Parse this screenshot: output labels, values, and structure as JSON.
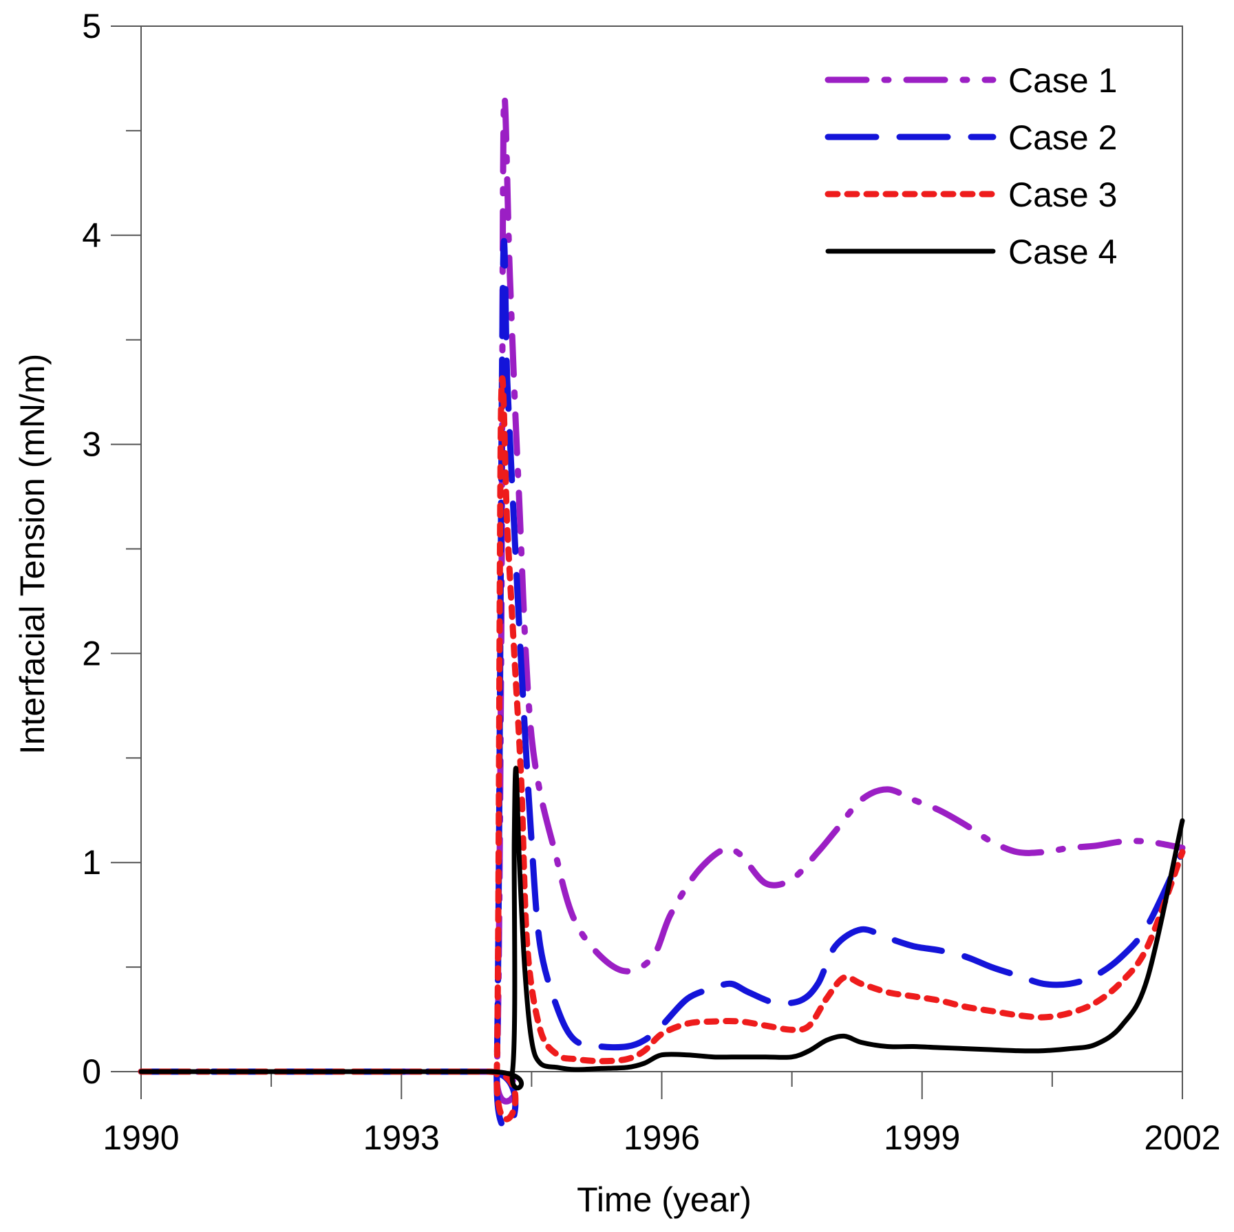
{
  "chart_data": {
    "type": "line",
    "title": "",
    "xlabel": "Time (year)",
    "ylabel": "Interfacial Tension (mN/m)",
    "xlim": [
      1990,
      2002
    ],
    "ylim": [
      0,
      5
    ],
    "xticks": [
      1990,
      1993,
      1996,
      1999,
      2002
    ],
    "xtick_labels": [
      "1990",
      "1993",
      "1996",
      "1999",
      "2002"
    ],
    "yticks": [
      0,
      1,
      2,
      3,
      4,
      5
    ],
    "ytick_labels": [
      "0",
      "1",
      "2",
      "3",
      "4",
      "5"
    ],
    "grid": false,
    "legend_position": "top-right",
    "series": [
      {
        "name": "Case 1",
        "color": "#9b1fc4",
        "style": "dash-dot",
        "x": [
          1990,
          1994.0,
          1994.1,
          1994.15,
          1994.18,
          1994.25,
          1994.35,
          1994.5,
          1994.8,
          1995.0,
          1995.3,
          1995.6,
          1995.9,
          1996.1,
          1996.4,
          1996.7,
          1996.9,
          1997.2,
          1997.5,
          1997.8,
          1998.0,
          1998.3,
          1998.6,
          1998.9,
          1999.2,
          1999.5,
          1999.8,
          2000.1,
          2000.4,
          2000.7,
          2001.0,
          2001.3,
          2001.6,
          2002.0
        ],
        "y": [
          0,
          0,
          0,
          2.0,
          4.6,
          3.8,
          2.8,
          1.6,
          1.0,
          0.72,
          0.55,
          0.48,
          0.55,
          0.75,
          0.95,
          1.06,
          1.04,
          0.9,
          0.92,
          1.05,
          1.15,
          1.3,
          1.35,
          1.3,
          1.25,
          1.18,
          1.1,
          1.05,
          1.05,
          1.07,
          1.08,
          1.1,
          1.1,
          1.07
        ]
      },
      {
        "name": "Case 2",
        "color": "#1414d9",
        "style": "long-dash",
        "x": [
          1990,
          1994.0,
          1994.1,
          1994.17,
          1994.22,
          1994.3,
          1994.4,
          1994.5,
          1994.6,
          1994.8,
          1995.0,
          1995.3,
          1995.6,
          1995.8,
          1996.0,
          1996.3,
          1996.6,
          1996.8,
          1997.0,
          1997.3,
          1997.6,
          1997.8,
          1998.0,
          1998.3,
          1998.6,
          1998.9,
          1999.2,
          1999.5,
          1999.8,
          2000.1,
          2000.4,
          2000.7,
          2001.0,
          2001.3,
          2001.6,
          2002.0
        ],
        "y": [
          0,
          0,
          0,
          3.8,
          3.3,
          2.6,
          1.8,
          1.1,
          0.6,
          0.3,
          0.15,
          0.12,
          0.12,
          0.15,
          0.22,
          0.35,
          0.4,
          0.42,
          0.38,
          0.33,
          0.34,
          0.42,
          0.6,
          0.68,
          0.64,
          0.6,
          0.58,
          0.55,
          0.5,
          0.46,
          0.42,
          0.42,
          0.46,
          0.55,
          0.7,
          1.05
        ]
      },
      {
        "name": "Case 3",
        "color": "#ee1c1c",
        "style": "dotted",
        "x": [
          1990,
          1994.0,
          1994.1,
          1994.15,
          1994.22,
          1994.3,
          1994.38,
          1994.45,
          1994.6,
          1994.8,
          1995.0,
          1995.3,
          1995.6,
          1995.8,
          1996.0,
          1996.3,
          1996.6,
          1996.9,
          1997.2,
          1997.5,
          1997.7,
          1997.9,
          1998.1,
          1998.3,
          1998.6,
          1998.9,
          1999.2,
          1999.5,
          1999.8,
          2000.1,
          2000.4,
          2000.7,
          2001.0,
          2001.3,
          2001.6,
          2002.0
        ],
        "y": [
          0,
          0,
          0,
          3.2,
          2.6,
          2.0,
          1.4,
          0.6,
          0.2,
          0.08,
          0.06,
          0.05,
          0.06,
          0.1,
          0.18,
          0.23,
          0.24,
          0.24,
          0.22,
          0.2,
          0.22,
          0.35,
          0.45,
          0.42,
          0.38,
          0.36,
          0.34,
          0.31,
          0.29,
          0.27,
          0.26,
          0.28,
          0.33,
          0.43,
          0.6,
          1.05
        ]
      },
      {
        "name": "Case 4",
        "color": "#000000",
        "style": "solid",
        "x": [
          1990,
          1994.0,
          1994.28,
          1994.3,
          1994.32,
          1994.36,
          1994.42,
          1994.5,
          1994.6,
          1994.8,
          1995.0,
          1995.3,
          1995.6,
          1995.8,
          1996.0,
          1996.3,
          1996.6,
          1996.9,
          1997.2,
          1997.5,
          1997.7,
          1997.9,
          1998.1,
          1998.3,
          1998.6,
          1998.9,
          1999.2,
          1999.5,
          1999.8,
          2000.1,
          2000.4,
          2000.7,
          2001.0,
          2001.3,
          2001.6,
          2002.0
        ],
        "y": [
          0,
          0,
          0,
          1.1,
          1.45,
          1.0,
          0.5,
          0.15,
          0.04,
          0.02,
          0.01,
          0.015,
          0.02,
          0.04,
          0.08,
          0.08,
          0.07,
          0.07,
          0.07,
          0.07,
          0.1,
          0.15,
          0.17,
          0.14,
          0.12,
          0.12,
          0.115,
          0.11,
          0.105,
          0.1,
          0.1,
          0.11,
          0.13,
          0.22,
          0.45,
          1.2
        ]
      }
    ]
  }
}
